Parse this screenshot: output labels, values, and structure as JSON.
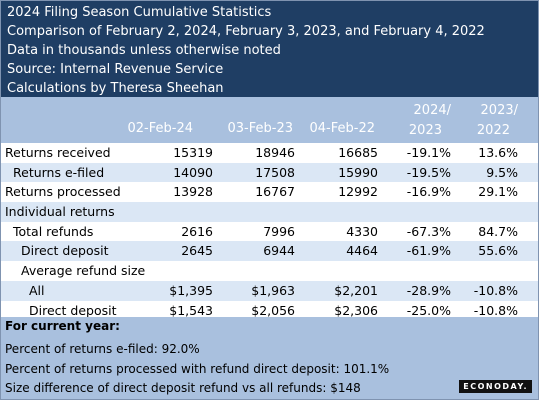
{
  "title_lines": [
    "2024 Filing Season Cumulative Statistics",
    "Comparison of February 2, 2024, February 3, 2023, and February 4, 2022",
    "Data in thousands unless otherwise noted",
    "Source: Internal Revenue Service",
    "Calculations by Theresa Sheehan"
  ],
  "columns": {
    "d1": "02-Feb-24",
    "d2": "03-Feb-23",
    "d3": "04-Feb-22",
    "p1_top": "2024/",
    "p1_bot": "2023",
    "p2_top": "2023/",
    "p2_bot": "2022"
  },
  "rows": [
    {
      "label": "Returns received",
      "indent": 0,
      "v1": "15319",
      "v2": "18946",
      "v3": "16685",
      "p1": "-19.1%",
      "p2": "13.6%"
    },
    {
      "label": "Returns e-filed",
      "indent": 1,
      "v1": "14090",
      "v2": "17508",
      "v3": "15990",
      "p1": "-19.5%",
      "p2": "9.5%"
    },
    {
      "label": "Returns processed",
      "indent": 0,
      "v1": "13928",
      "v2": "16767",
      "v3": "12992",
      "p1": "-16.9%",
      "p2": "29.1%"
    },
    {
      "label": "Individual returns",
      "indent": 0,
      "v1": "",
      "v2": "",
      "v3": "",
      "p1": "",
      "p2": ""
    },
    {
      "label": "Total refunds",
      "indent": 1,
      "v1": "2616",
      "v2": "7996",
      "v3": "4330",
      "p1": "-67.3%",
      "p2": "84.7%"
    },
    {
      "label": "Direct deposit",
      "indent": 2,
      "v1": "2645",
      "v2": "6944",
      "v3": "4464",
      "p1": "-61.9%",
      "p2": "55.6%"
    },
    {
      "label": "Average refund size",
      "indent": 2,
      "v1": "",
      "v2": "",
      "v3": "",
      "p1": "",
      "p2": ""
    },
    {
      "label": "All",
      "indent": 3,
      "v1": "$1,395",
      "v2": "$1,963",
      "v3": "$2,201",
      "p1": "-28.9%",
      "p2": "-10.8%"
    },
    {
      "label": "Direct deposit",
      "indent": 3,
      "v1": "$1,543",
      "v2": "$2,056",
      "v3": "$2,306",
      "p1": "-25.0%",
      "p2": "-10.8%"
    }
  ],
  "footer": {
    "heading": "For current year:",
    "line1": "Percent of returns e-filed: 92.0%",
    "line2": "Percent of returns processed with refund direct deposit: 101.1%",
    "line3": "Size difference of direct deposit refund vs all refunds: $148"
  },
  "logo": "ECONODAY."
}
